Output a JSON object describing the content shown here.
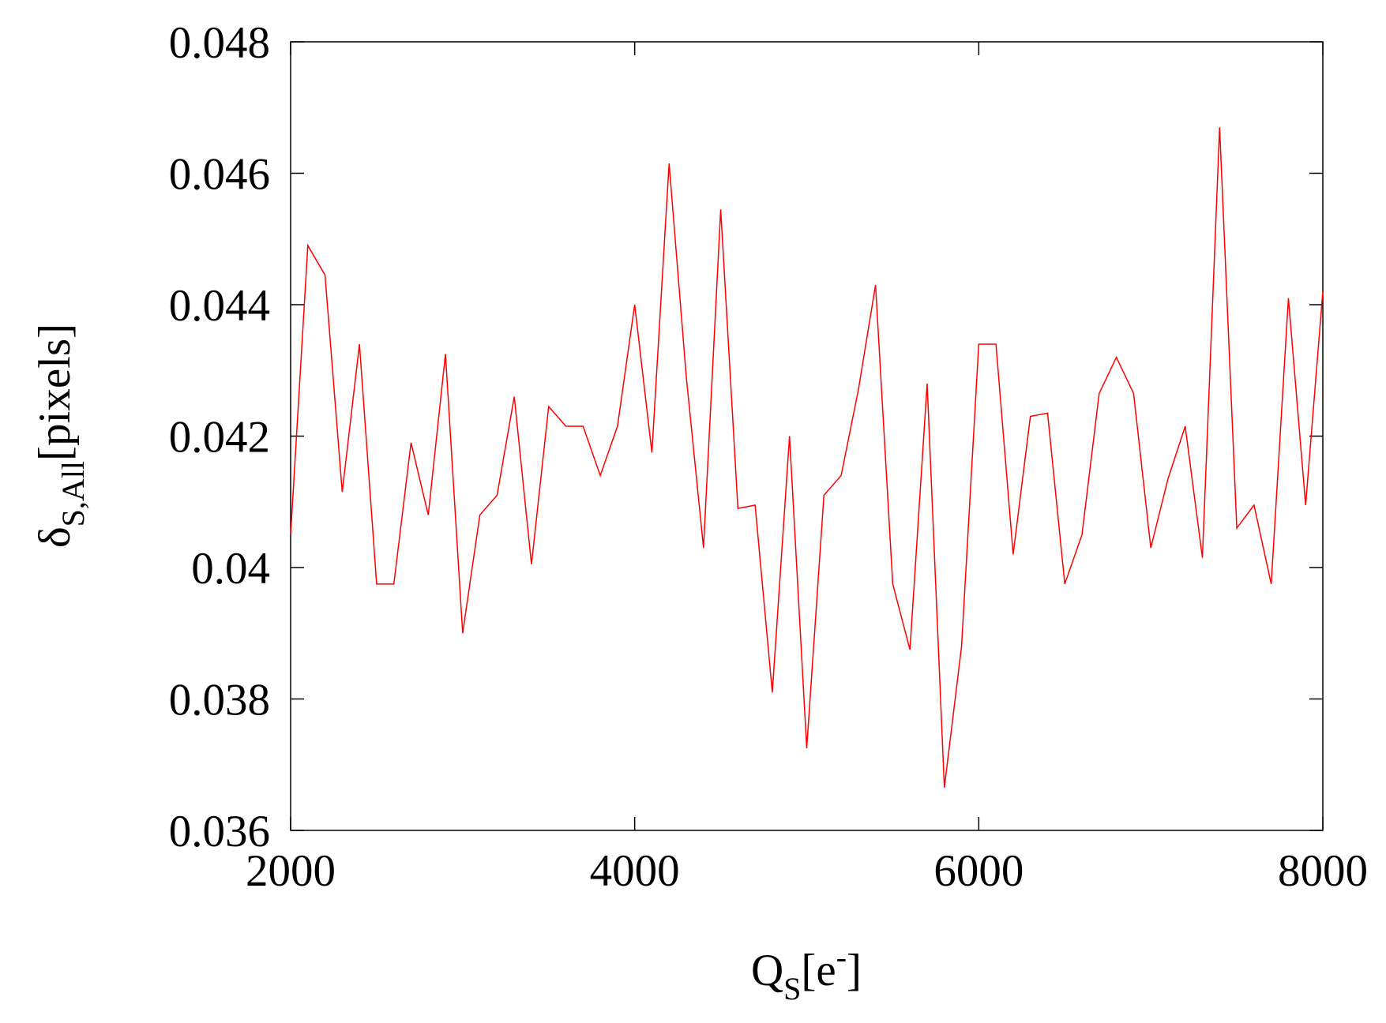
{
  "chart_data": {
    "type": "line",
    "xlabel": {
      "main": "Q",
      "sub": "S",
      "open": "[e",
      "sup": "-",
      "close": "]"
    },
    "ylabel": {
      "main": "δ",
      "sub": "S,All",
      "rest": "[pixels]"
    },
    "x": [
      2000,
      2100,
      2200,
      2300,
      2400,
      2500,
      2600,
      2700,
      2800,
      2900,
      3000,
      3100,
      3200,
      3300,
      3400,
      3500,
      3600,
      3700,
      3800,
      3900,
      4000,
      4100,
      4200,
      4300,
      4400,
      4500,
      4600,
      4700,
      4800,
      4900,
      5000,
      5100,
      5200,
      5300,
      5400,
      5500,
      5600,
      5700,
      5800,
      5900,
      6000,
      6100,
      6200,
      6300,
      6400,
      6500,
      6600,
      6700,
      6800,
      6900,
      7000,
      7100,
      7200,
      7300,
      7400,
      7500,
      7600,
      7700,
      7800,
      7900,
      8000
    ],
    "series": [
      {
        "color": "#ff0000",
        "values": [
          0.0405,
          0.0449,
          0.04445,
          0.04115,
          0.0434,
          0.03975,
          0.03975,
          0.0419,
          0.0408,
          0.04325,
          0.039,
          0.0408,
          0.0411,
          0.0426,
          0.04005,
          0.04245,
          0.04215,
          0.04215,
          0.0414,
          0.04215,
          0.044,
          0.04175,
          0.04615,
          0.0429,
          0.0403,
          0.04545,
          0.0409,
          0.04095,
          0.0381,
          0.042,
          0.03725,
          0.0411,
          0.0414,
          0.0427,
          0.0443,
          0.03975,
          0.03875,
          0.0428,
          0.03665,
          0.0388,
          0.0434,
          0.0434,
          0.0402,
          0.0423,
          0.04235,
          0.03975,
          0.0405,
          0.04265,
          0.0432,
          0.04265,
          0.0403,
          0.04135,
          0.04215,
          0.04015,
          0.0467,
          0.0406,
          0.04095,
          0.03975,
          0.0441,
          0.04095,
          0.0442
        ]
      }
    ],
    "xlim": [
      2000,
      8000
    ],
    "xticks": [
      2000,
      4000,
      6000,
      8000
    ],
    "ylim": [
      0.036,
      0.048
    ],
    "yticks": [
      0.036,
      0.038,
      0.04,
      0.042,
      0.044,
      0.046,
      0.048
    ]
  }
}
